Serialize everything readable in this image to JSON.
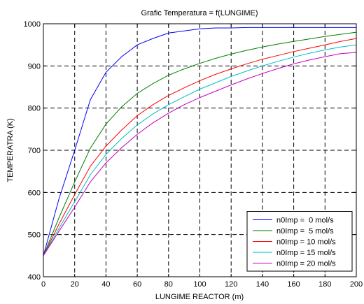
{
  "chart_data": {
    "type": "line",
    "title": "Grafic Temperatura = f(LUNGIME)",
    "xlabel": "LUNGIME REACTOR (m)",
    "ylabel": "TEMPERATRA (K)",
    "xlim": [
      0,
      200
    ],
    "ylim": [
      400,
      1000
    ],
    "xticks": [
      0,
      20,
      40,
      60,
      80,
      100,
      120,
      140,
      160,
      180,
      200
    ],
    "yticks": [
      400,
      500,
      600,
      700,
      800,
      900,
      1000
    ],
    "grid": true,
    "legend_position": "bottom-right",
    "x": [
      0,
      10,
      20,
      30,
      40,
      50,
      60,
      70,
      80,
      90,
      100,
      110,
      120,
      130,
      140,
      150,
      160,
      170,
      180,
      190,
      200
    ],
    "series": [
      {
        "name": "n0Imp =  0 mol/s",
        "color": "#0000ff",
        "values": [
          450,
          585,
          700,
          820,
          885,
          922,
          950,
          965,
          978,
          983,
          988,
          990,
          990,
          991,
          991,
          991,
          991,
          991,
          991,
          991,
          991
        ]
      },
      {
        "name": "n0Imp =  5 mol/s",
        "color": "#008000",
        "values": [
          450,
          540,
          625,
          705,
          762,
          803,
          835,
          858,
          878,
          893,
          906,
          918,
          928,
          937,
          945,
          952,
          958,
          964,
          970,
          975,
          980
        ]
      },
      {
        "name": "n0Imp = 10 mol/s",
        "color": "#ff0000",
        "values": [
          450,
          525,
          595,
          662,
          710,
          748,
          782,
          808,
          830,
          848,
          865,
          880,
          893,
          905,
          916,
          925,
          934,
          942,
          950,
          958,
          965
        ]
      },
      {
        "name": "n0Imp = 15 mol/s",
        "color": "#00bfbf",
        "values": [
          450,
          515,
          578,
          642,
          690,
          728,
          760,
          786,
          808,
          827,
          845,
          860,
          875,
          888,
          900,
          911,
          921,
          930,
          938,
          945,
          950
        ]
      },
      {
        "name": "n0Imp = 20 mol/s",
        "color": "#bf00bf",
        "values": [
          450,
          508,
          565,
          625,
          670,
          706,
          738,
          765,
          788,
          808,
          825,
          840,
          855,
          869,
          882,
          894,
          905,
          914,
          922,
          929,
          932
        ]
      }
    ]
  }
}
